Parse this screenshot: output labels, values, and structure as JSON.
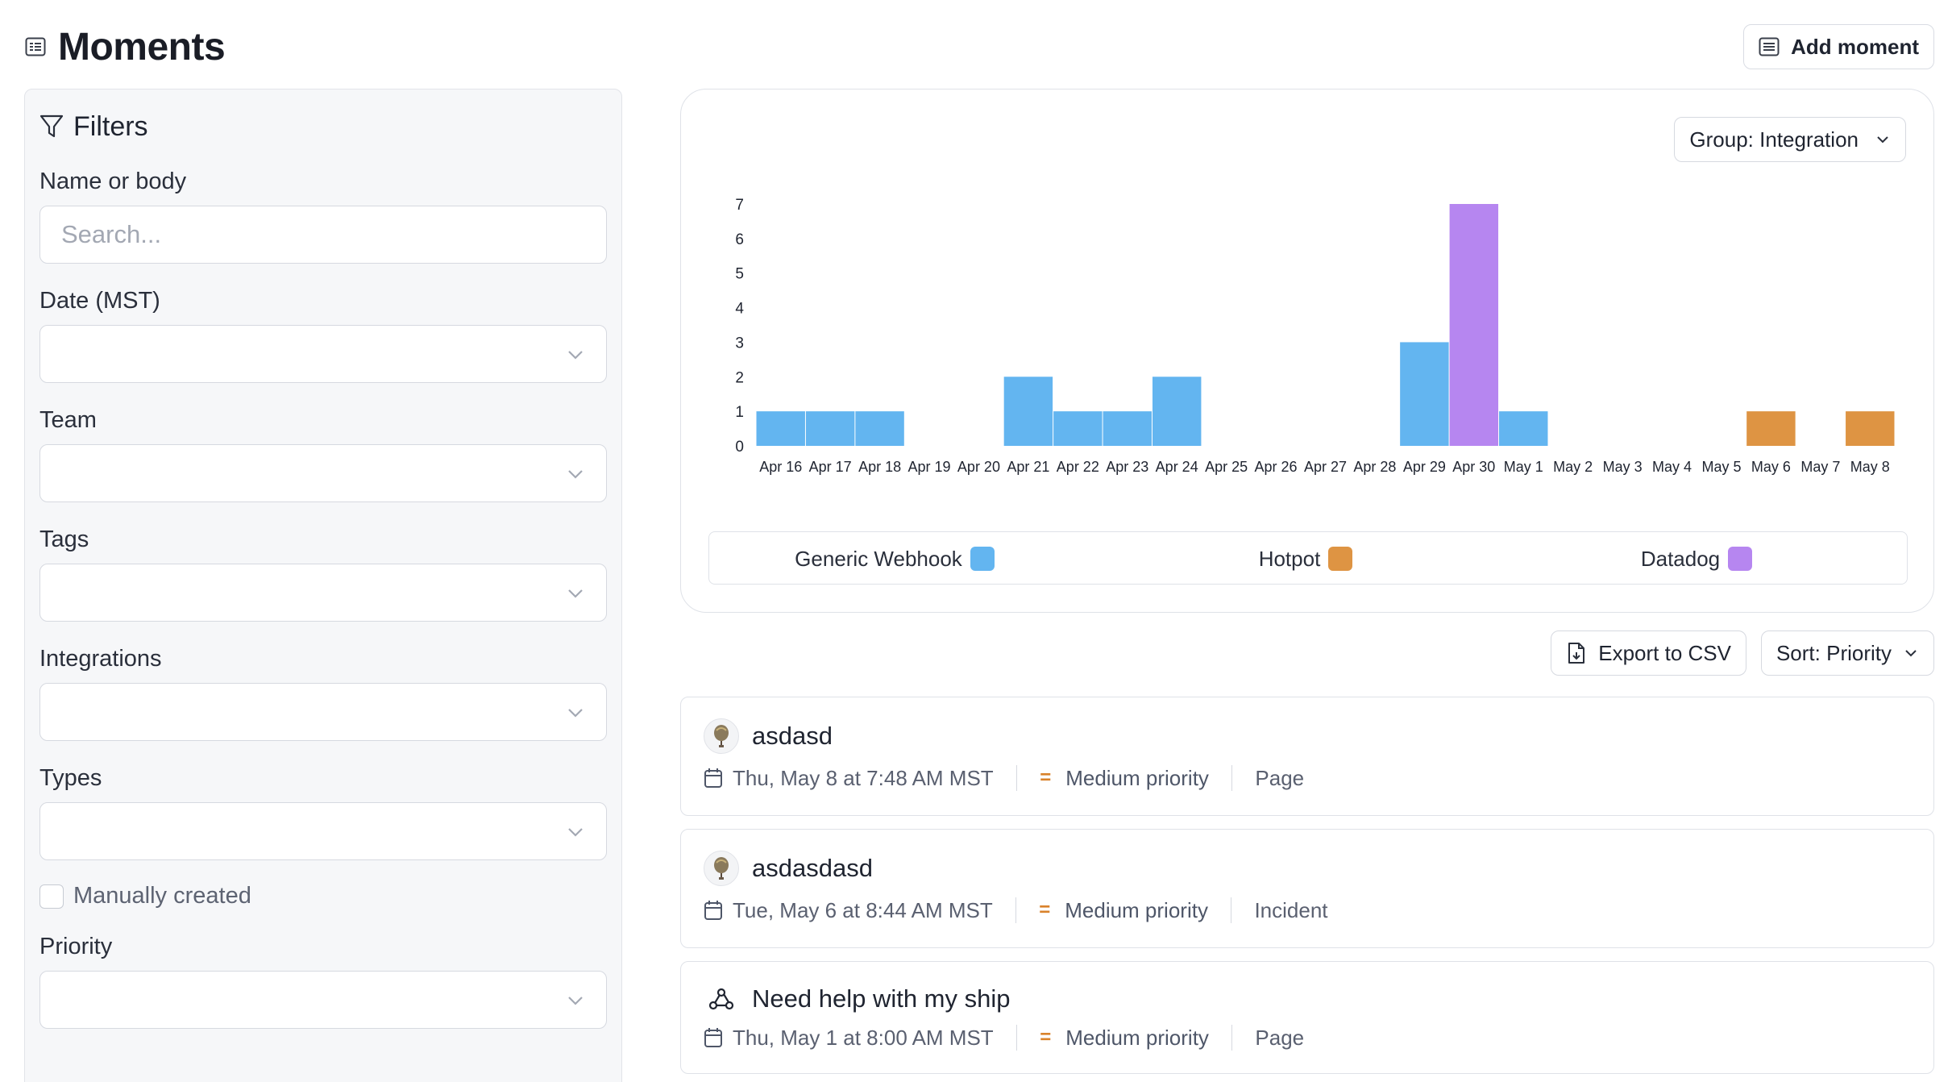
{
  "header": {
    "title": "Moments",
    "add_label": "Add moment"
  },
  "filters": {
    "title": "Filters",
    "name_label": "Name or body",
    "search_placeholder": "Search...",
    "date_label": "Date (MST)",
    "team_label": "Team",
    "tags_label": "Tags",
    "integrations_label": "Integrations",
    "types_label": "Types",
    "manual_label": "Manually created",
    "priority_label": "Priority"
  },
  "chart_controls": {
    "group_label": "Group: Integration"
  },
  "chart_data": {
    "type": "bar",
    "stacked": true,
    "categories": [
      "Apr 16",
      "Apr 17",
      "Apr 18",
      "Apr 19",
      "Apr 20",
      "Apr 21",
      "Apr 22",
      "Apr 23",
      "Apr 24",
      "Apr 25",
      "Apr 26",
      "Apr 27",
      "Apr 28",
      "Apr 29",
      "Apr 30",
      "May 1",
      "May 2",
      "May 3",
      "May 4",
      "May 5",
      "May 6",
      "May 7",
      "May 8"
    ],
    "series": [
      {
        "name": "Generic Webhook",
        "color": "#63b5f0",
        "values": [
          1,
          1,
          1,
          0,
          0,
          2,
          1,
          1,
          2,
          0,
          0,
          0,
          0,
          3,
          0,
          1,
          0,
          0,
          0,
          0,
          0,
          0,
          0
        ]
      },
      {
        "name": "Hotpot",
        "color": "#de9443",
        "values": [
          0,
          0,
          0,
          0,
          0,
          0,
          0,
          0,
          0,
          0,
          0,
          0,
          0,
          0,
          0,
          0,
          0,
          0,
          0,
          0,
          1,
          0,
          1
        ]
      },
      {
        "name": "Datadog",
        "color": "#b686f0",
        "values": [
          0,
          0,
          0,
          0,
          0,
          0,
          0,
          0,
          0,
          0,
          0,
          0,
          0,
          0,
          7,
          0,
          0,
          0,
          0,
          0,
          0,
          0,
          0
        ]
      }
    ],
    "y_ticks": [
      "0",
      "1",
      "2",
      "3",
      "4",
      "5",
      "6",
      "7"
    ],
    "ylim": [
      0,
      7
    ],
    "legend_position": "bottom"
  },
  "toolbar": {
    "export_label": "Export to CSV",
    "sort_label": "Sort: Priority"
  },
  "moments": [
    {
      "title": "asdasd",
      "date": "Thu, May 8 at 7:48 AM MST",
      "priority": "Medium priority",
      "type": "Page",
      "icon": "balloon-avatar"
    },
    {
      "title": "asdasdasd",
      "date": "Tue, May 6 at 8:44 AM MST",
      "priority": "Medium priority",
      "type": "Incident",
      "icon": "balloon-avatar"
    },
    {
      "title": "Need help with my ship",
      "date": "Thu, May 1 at 8:00 AM MST",
      "priority": "Medium priority",
      "type": "Page",
      "icon": "webhook-icon"
    }
  ]
}
